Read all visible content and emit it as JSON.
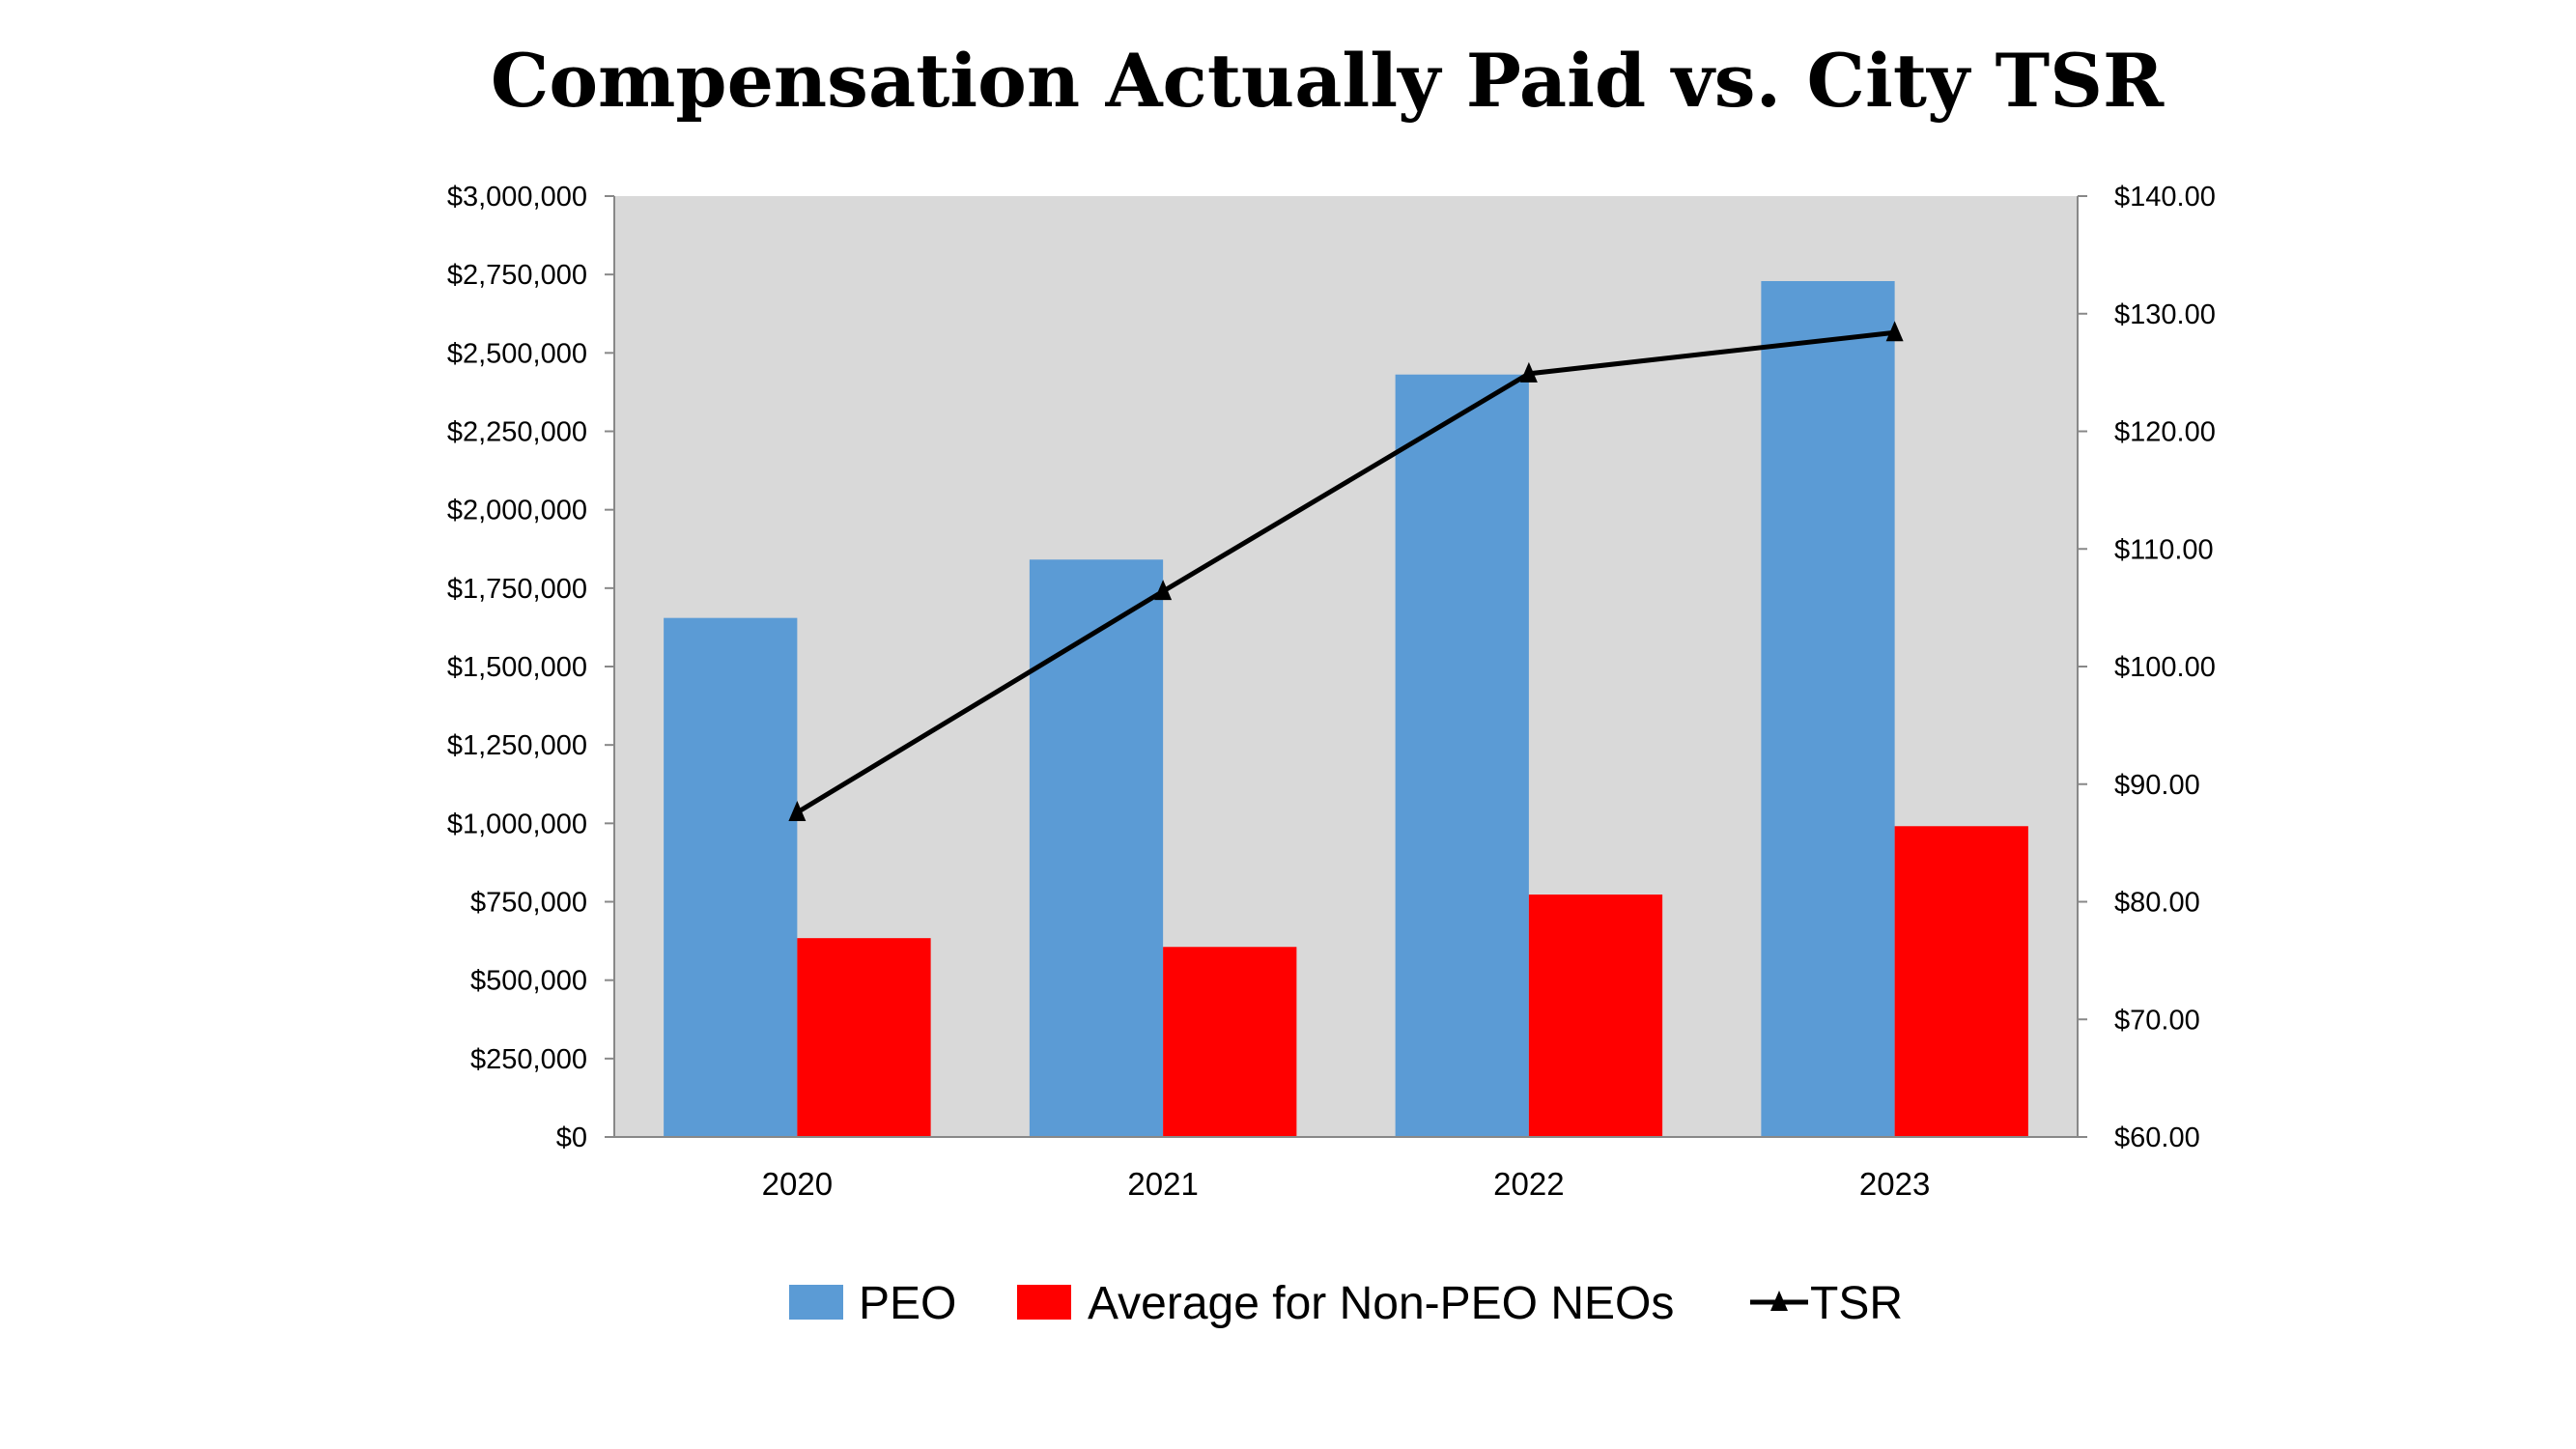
{
  "chart_data": {
    "type": "bar+line",
    "title": "Compensation Actually Paid vs. City TSR",
    "categories": [
      "2020",
      "2021",
      "2022",
      "2023"
    ],
    "series": [
      {
        "name": "PEO",
        "type": "bar",
        "axis": "left",
        "color": "#5B9BD5",
        "values": [
          1655000,
          1841000,
          2431000,
          2729000
        ]
      },
      {
        "name": "Average for Non-PEO NEOs",
        "type": "bar",
        "axis": "left",
        "color": "#FF0000",
        "values": [
          634000,
          606000,
          773000,
          991000
        ]
      },
      {
        "name": "TSR",
        "type": "line",
        "axis": "right",
        "color": "#000000",
        "marker": "triangle",
        "values": [
          87.6,
          106.4,
          124.9,
          128.4
        ]
      }
    ],
    "left_axis": {
      "ylim": [
        0,
        3000000
      ],
      "ticks": [
        "$0",
        "$250,000",
        "$500,000",
        "$750,000",
        "$1,000,000",
        "$1,250,000",
        "$1,500,000",
        "$1,750,000",
        "$2,000,000",
        "$2,250,000",
        "$2,500,000",
        "$2,750,000",
        "$3,000,000"
      ]
    },
    "right_axis": {
      "ylim": [
        60,
        140
      ],
      "ticks": [
        "$60.00",
        "$70.00",
        "$80.00",
        "$90.00",
        "$100.00",
        "$110.00",
        "$120.00",
        "$130.00",
        "$140.00"
      ]
    },
    "plot_background": "#D9D9D9",
    "grid": false,
    "legend_position": "bottom"
  }
}
